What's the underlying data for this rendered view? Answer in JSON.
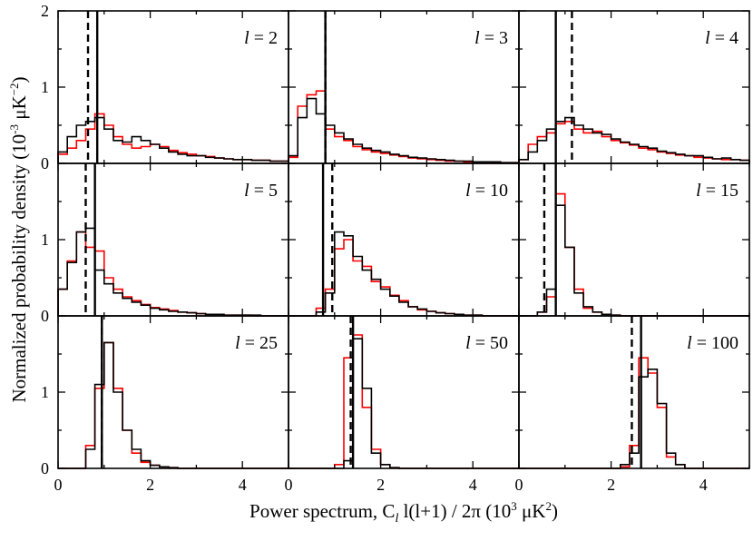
{
  "chart_data": {
    "type": "histogram-grid",
    "rows": 3,
    "cols": 3,
    "xlabel": {
      "main": "Power spectrum, C",
      "sub": "l",
      "rest": " l(l+1) / 2π (10",
      "sup": "3",
      "units": " μK",
      "units_sup": "2",
      "close": ")"
    },
    "ylabel": {
      "main": "Normalized probability density (10",
      "sup": "-3",
      "units": " μK",
      "units_sup": "−2",
      "close": ")"
    },
    "xlim": [
      0,
      5
    ],
    "ylim": [
      0,
      2
    ],
    "xticks_labeled": [
      0,
      2,
      4
    ],
    "yticks_labeled": [
      0,
      1,
      2
    ],
    "bin_width": 0.2,
    "colors": {
      "red": "#ff0000",
      "black": "#000000"
    },
    "panels": [
      {
        "l": "2",
        "solid": 0.85,
        "dashed": 0.65,
        "black": [
          0.15,
          0.35,
          0.5,
          0.55,
          0.6,
          0.45,
          0.3,
          0.28,
          0.35,
          0.3,
          0.25,
          0.2,
          0.15,
          0.12,
          0.1,
          0.1,
          0.08,
          0.07,
          0.06,
          0.05,
          0.05,
          0.04,
          0.04,
          0.03,
          0.03
        ],
        "red": [
          0.12,
          0.2,
          0.3,
          0.45,
          0.65,
          0.5,
          0.35,
          0.25,
          0.2,
          0.22,
          0.25,
          0.22,
          0.17,
          0.14,
          0.12,
          0.1,
          0.09,
          0.07,
          0.06,
          0.05,
          0.05,
          0.04,
          0.04,
          0.03,
          0.03
        ]
      },
      {
        "l": "3",
        "solid": 0.8,
        "dashed": 0.8,
        "black": [
          0.1,
          0.6,
          0.85,
          0.65,
          0.5,
          0.4,
          0.32,
          0.25,
          0.2,
          0.17,
          0.15,
          0.12,
          0.1,
          0.08,
          0.07,
          0.06,
          0.05,
          0.04,
          0.03,
          0.03,
          0.02,
          0.02,
          0.02,
          0.01,
          0.01
        ],
        "red": [
          0.08,
          0.75,
          0.9,
          0.95,
          0.45,
          0.35,
          0.3,
          0.22,
          0.18,
          0.15,
          0.13,
          0.11,
          0.09,
          0.07,
          0.06,
          0.05,
          0.04,
          0.03,
          0.03,
          0.02,
          0.02,
          0.02,
          0.01,
          0.01,
          0.01
        ]
      },
      {
        "l": "4",
        "solid": 0.8,
        "dashed": 1.15,
        "black": [
          0.05,
          0.15,
          0.3,
          0.45,
          0.55,
          0.6,
          0.5,
          0.45,
          0.4,
          0.38,
          0.32,
          0.28,
          0.25,
          0.22,
          0.2,
          0.16,
          0.14,
          0.12,
          0.1,
          0.1,
          0.08,
          0.06,
          0.07,
          0.05,
          0.04
        ],
        "red": [
          0.05,
          0.25,
          0.35,
          0.4,
          0.52,
          0.55,
          0.45,
          0.4,
          0.42,
          0.35,
          0.3,
          0.27,
          0.24,
          0.2,
          0.18,
          0.15,
          0.13,
          0.11,
          0.1,
          0.08,
          0.07,
          0.06,
          0.05,
          0.05,
          0.04
        ]
      },
      {
        "l": "5",
        "solid": 0.8,
        "dashed": 0.6,
        "black": [
          0.35,
          0.7,
          1.1,
          1.15,
          0.6,
          0.42,
          0.3,
          0.23,
          0.18,
          0.14,
          0.1,
          0.08,
          0.06,
          0.05,
          0.04,
          0.03,
          0.02,
          0.02,
          0.01,
          0.01,
          0.01,
          0.01,
          0,
          0,
          0
        ],
        "red": [
          0.35,
          0.72,
          1.1,
          0.9,
          0.85,
          0.5,
          0.35,
          0.25,
          0.2,
          0.15,
          0.11,
          0.09,
          0.07,
          0.05,
          0.04,
          0.03,
          0.02,
          0.02,
          0.01,
          0.01,
          0.01,
          0,
          0,
          0,
          0
        ]
      },
      {
        "l": "10",
        "solid": 0.75,
        "dashed": 0.95,
        "black": [
          0,
          0,
          0,
          0.05,
          0.3,
          1.1,
          1.05,
          0.78,
          0.6,
          0.48,
          0.35,
          0.26,
          0.18,
          0.12,
          0.09,
          0.06,
          0.04,
          0.03,
          0.02,
          0.01,
          0.01,
          0,
          0,
          0,
          0
        ],
        "red": [
          0,
          0,
          0,
          0.1,
          0.35,
          0.88,
          1.0,
          0.72,
          0.65,
          0.45,
          0.38,
          0.27,
          0.2,
          0.12,
          0.08,
          0.06,
          0.04,
          0.03,
          0.02,
          0.01,
          0.01,
          0,
          0,
          0,
          0
        ]
      },
      {
        "l": "15",
        "solid": 0.8,
        "dashed": 0.55,
        "black": [
          0,
          0,
          0.05,
          0.35,
          1.45,
          0.9,
          0.3,
          0.12,
          0.05,
          0.02,
          0.01,
          0,
          0,
          0,
          0,
          0,
          0,
          0,
          0,
          0,
          0,
          0,
          0,
          0,
          0
        ],
        "red": [
          0,
          0,
          0.05,
          0.25,
          1.6,
          0.9,
          0.35,
          0.1,
          0.05,
          0.02,
          0.01,
          0,
          0,
          0,
          0,
          0,
          0,
          0,
          0,
          0,
          0,
          0,
          0,
          0,
          0
        ]
      },
      {
        "l": "25",
        "solid": 0.95,
        "dashed": 0.95,
        "black": [
          0,
          0,
          0,
          0.25,
          1.1,
          1.65,
          1.0,
          0.5,
          0.25,
          0.1,
          0.04,
          0.02,
          0.01,
          0,
          0,
          0,
          0,
          0,
          0,
          0,
          0,
          0,
          0,
          0,
          0
        ],
        "red": [
          0,
          0,
          0,
          0.3,
          1.05,
          1.65,
          1.05,
          0.5,
          0.2,
          0.08,
          0.04,
          0.02,
          0.01,
          0,
          0,
          0,
          0,
          0,
          0,
          0,
          0,
          0,
          0,
          0,
          0
        ]
      },
      {
        "l": "50",
        "solid": 1.4,
        "dashed": 1.35,
        "black": [
          0,
          0,
          0,
          0,
          0,
          0,
          0.1,
          1.7,
          1.05,
          0.2,
          0.05,
          0.01,
          0,
          0,
          0,
          0,
          0,
          0,
          0,
          0,
          0,
          0,
          0,
          0,
          0
        ],
        "red": [
          0,
          0,
          0,
          0,
          0,
          0.05,
          1.45,
          1.75,
          0.8,
          0.25,
          0.05,
          0.01,
          0,
          0,
          0,
          0,
          0,
          0,
          0,
          0,
          0,
          0,
          0,
          0,
          0
        ]
      },
      {
        "l": "100",
        "solid": 2.65,
        "dashed": 2.45,
        "black": [
          0,
          0,
          0,
          0,
          0,
          0,
          0,
          0,
          0,
          0,
          0,
          0.05,
          0.2,
          1.2,
          1.3,
          0.85,
          0.2,
          0.05,
          0,
          0,
          0,
          0,
          0,
          0,
          0
        ],
        "red": [
          0,
          0,
          0,
          0,
          0,
          0,
          0,
          0,
          0,
          0,
          0,
          0.02,
          0.3,
          1.45,
          1.25,
          0.8,
          0.15,
          0.05,
          0,
          0,
          0,
          0,
          0,
          0,
          0
        ]
      }
    ]
  }
}
